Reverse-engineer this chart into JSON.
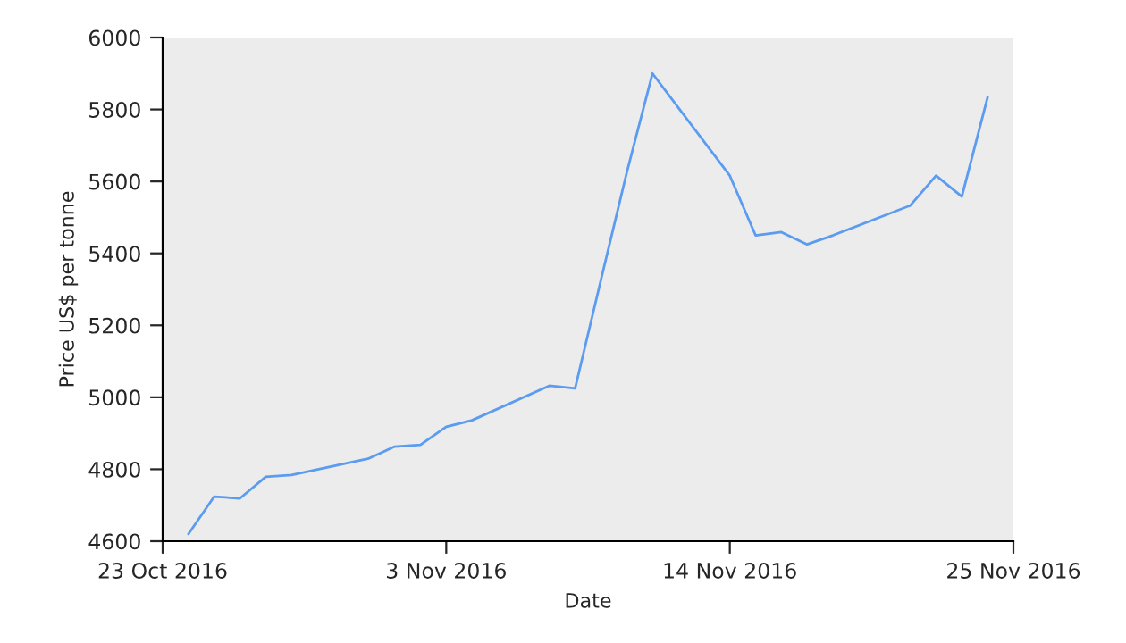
{
  "chart_data": {
    "type": "line",
    "xlabel": "Date",
    "ylabel": "Price US$ per tonne",
    "x": [
      "2016-10-24",
      "2016-10-25",
      "2016-10-26",
      "2016-10-27",
      "2016-10-28",
      "2016-10-31",
      "2016-11-01",
      "2016-11-02",
      "2016-11-03",
      "2016-11-04",
      "2016-11-07",
      "2016-11-08",
      "2016-11-09",
      "2016-11-10",
      "2016-11-11",
      "2016-11-14",
      "2016-11-15",
      "2016-11-16",
      "2016-11-17",
      "2016-11-18",
      "2016-11-21",
      "2016-11-22",
      "2016-11-23",
      "2016-11-24"
    ],
    "series": [
      {
        "color": "#5b9bf0",
        "values": [
          4620,
          4724,
          4719,
          4779,
          4784,
          4830,
          4863,
          4868,
          4918,
          4936,
          5032,
          5025,
          5326,
          5624,
          5900,
          5616,
          5450,
          5459,
          5425,
          5450,
          5533,
          5616,
          5558,
          5834
        ]
      }
    ],
    "xlim": [
      "2016-10-23",
      "2016-11-25"
    ],
    "xticks": [
      {
        "value": "2016-10-23",
        "label": "23 Oct 2016"
      },
      {
        "value": "2016-11-03",
        "label": "3 Nov 2016"
      },
      {
        "value": "2016-11-14",
        "label": "14 Nov 2016"
      },
      {
        "value": "2016-11-25",
        "label": "25 Nov 2016"
      }
    ],
    "ylim": [
      4600,
      6000
    ],
    "yticks": [
      4600,
      4800,
      5000,
      5200,
      5400,
      5600,
      5800,
      6000
    ],
    "grid": false,
    "legend": false,
    "marker": "none",
    "line_style": "solid"
  }
}
